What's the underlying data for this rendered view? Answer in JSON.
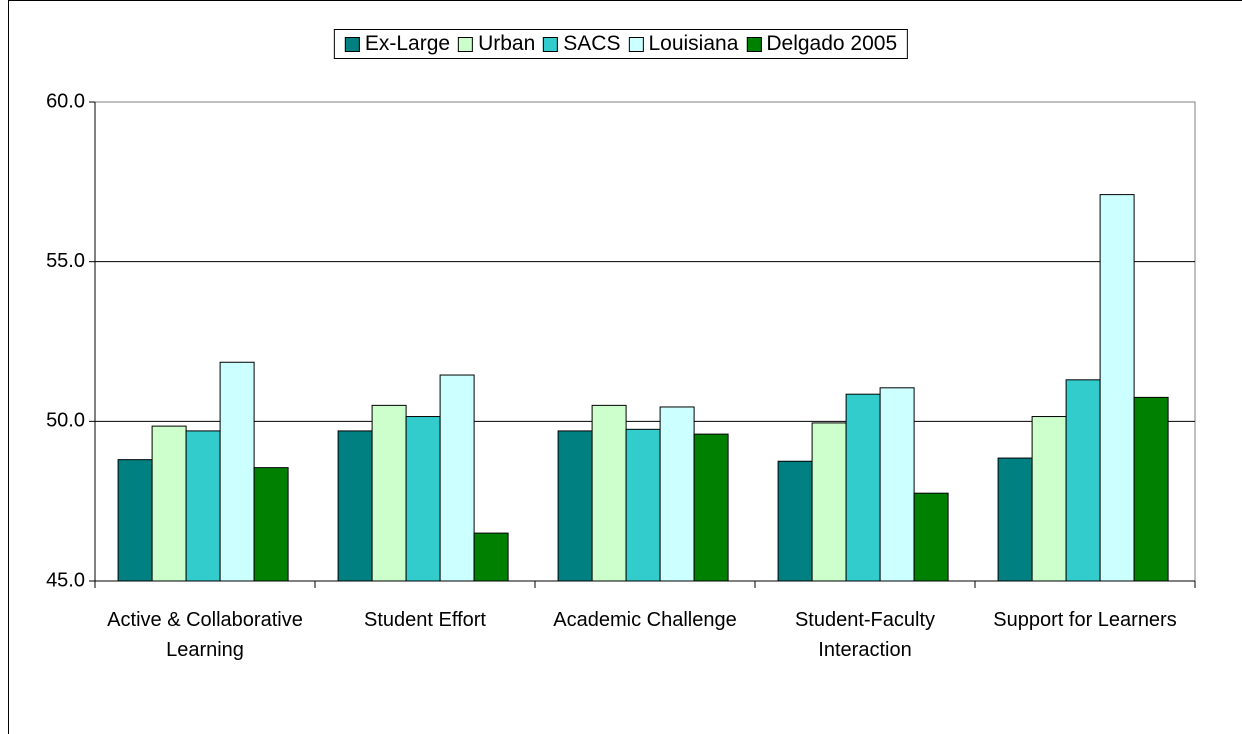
{
  "chart_data": {
    "type": "bar",
    "categories": [
      "Active & Collaborative Learning",
      "Student Effort",
      "Academic Challenge",
      "Student-Faculty Interaction",
      "Support for Learners"
    ],
    "series": [
      {
        "name": "Ex-Large",
        "color": "#008080",
        "values": [
          48.8,
          49.7,
          49.7,
          48.75,
          48.85
        ]
      },
      {
        "name": "Urban",
        "color": "#ccffcc",
        "values": [
          49.85,
          50.5,
          50.5,
          49.95,
          50.15
        ]
      },
      {
        "name": "SACS",
        "color": "#33cccc",
        "values": [
          49.7,
          50.15,
          49.75,
          50.85,
          51.3
        ]
      },
      {
        "name": "Louisiana",
        "color": "#ccffff",
        "values": [
          51.85,
          51.45,
          50.45,
          51.05,
          57.1
        ]
      },
      {
        "name": "Delgado 2005",
        "color": "#008000",
        "values": [
          48.55,
          46.5,
          49.6,
          47.75,
          50.75
        ]
      }
    ],
    "ylim": [
      45,
      60
    ],
    "yticks": [
      {
        "value": 45,
        "label": "45.0"
      },
      {
        "value": 50,
        "label": "50.0"
      },
      {
        "value": 55,
        "label": "55.0"
      },
      {
        "value": 60,
        "label": "60.0"
      }
    ],
    "grid": true,
    "legend": "top"
  }
}
